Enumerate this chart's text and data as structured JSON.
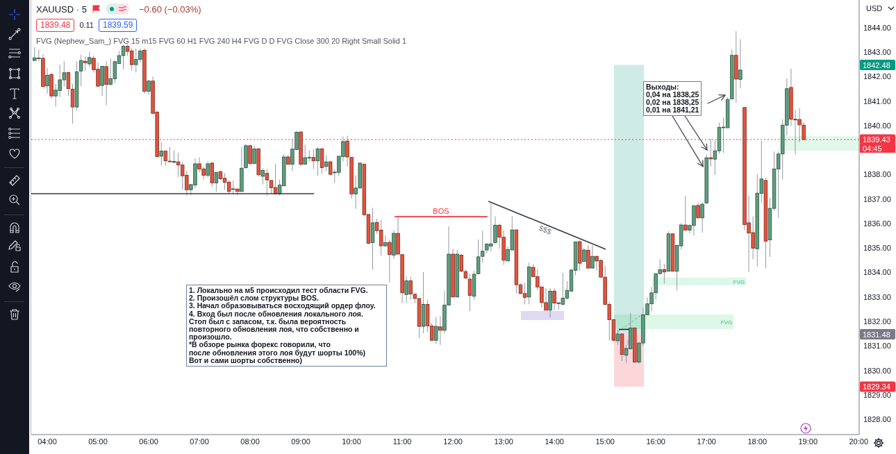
{
  "chart_data": {
    "type": "candlestick",
    "title": "XAUUSD · 5",
    "subtitle": "−0.60 (−0.03%)",
    "ylabel": "USD",
    "x": [
      3.75,
      3.8333,
      3.9167,
      4,
      4.0833,
      4.1667,
      4.25,
      4.3333,
      4.4167,
      4.5,
      4.5833,
      4.6667,
      4.75,
      4.8333,
      4.9167,
      5,
      5.0833,
      5.1667,
      5.25,
      5.3333,
      5.4167,
      5.5,
      5.5833,
      5.6667,
      5.75,
      5.8333,
      5.9167,
      6,
      6.0833,
      6.1667,
      6.25,
      6.3333,
      6.4167,
      6.5,
      6.5833,
      6.6667,
      6.75,
      6.8333,
      6.9167,
      7,
      7.0833,
      7.1667,
      7.25,
      7.3333,
      7.4167,
      7.5,
      7.5833,
      7.6667,
      7.75,
      7.8333,
      7.9167,
      8,
      8.0833,
      8.1667,
      8.25,
      8.3333,
      8.4167,
      8.5,
      8.5833,
      8.6667,
      8.75,
      8.8333,
      8.9167,
      9,
      9.0833,
      9.1667,
      9.25,
      9.3333,
      9.4167,
      9.5,
      9.5833,
      9.6667,
      9.75,
      9.8333,
      9.9167,
      10,
      10.0833,
      10.1667,
      10.25,
      10.3333,
      10.4167,
      10.5,
      10.5833,
      10.6667,
      10.75,
      10.8333,
      10.9167,
      11,
      11.0833,
      11.1667,
      11.25,
      11.3333,
      11.4167,
      11.5,
      11.5833,
      11.6667,
      11.75,
      11.8333,
      11.9167,
      12,
      12.0833,
      12.1667,
      12.25,
      12.3333,
      12.4167,
      12.5,
      12.5833,
      12.6667,
      12.75,
      12.8333,
      12.9167,
      13,
      13.0833,
      13.1667,
      13.25,
      13.3333,
      13.4167,
      13.5,
      13.5833,
      13.6667,
      13.75,
      13.8333,
      13.9167,
      14,
      14.0833,
      14.1667,
      14.25,
      14.3333,
      14.4167,
      14.5,
      14.5833,
      14.6667,
      14.75,
      14.8333,
      14.9167,
      15,
      15.0833,
      15.1667,
      15.25,
      15.3333,
      15.4167,
      15.5,
      15.5833,
      15.6667,
      15.75,
      15.8333,
      15.9167,
      16,
      16.0833,
      16.1667,
      16.25,
      16.3333,
      16.4167,
      16.5,
      16.5833,
      16.6667,
      16.75,
      16.8333,
      16.9167,
      17,
      17.0833,
      17.1667,
      17.25,
      17.3333,
      17.4167,
      17.5,
      17.5833,
      17.6667,
      17.75,
      17.8333,
      17.9167,
      18,
      18.0833,
      18.1667,
      18.25,
      18.3333,
      18.4167,
      18.5,
      18.5833,
      18.6667,
      18.75,
      18.8333,
      18.9167
    ],
    "ohlc": [
      [
        1842.66,
        1843.2,
        1842.63,
        1842.77
      ],
      [
        1842.75,
        1843.1,
        1842.63,
        1842.76
      ],
      [
        1842.75,
        1842.91,
        1841.59,
        1841.59
      ],
      [
        1841.62,
        1842.35,
        1841.3,
        1842.06
      ],
      [
        1842.09,
        1842.16,
        1841.1,
        1841.21
      ],
      [
        1841.21,
        1841.7,
        1840.77,
        1841.45
      ],
      [
        1841.43,
        1842.49,
        1841.17,
        1841.87
      ],
      [
        1841.87,
        1842.63,
        1841.59,
        1842.16
      ],
      [
        1842.17,
        1842.2,
        1841.21,
        1841.51
      ],
      [
        1841.49,
        1841.7,
        1840.08,
        1840.76
      ],
      [
        1840.76,
        1842.63,
        1840.6,
        1842.2
      ],
      [
        1842.23,
        1842.89,
        1841.61,
        1842.66
      ],
      [
        1842.63,
        1842.82,
        1842.23,
        1842.57
      ],
      [
        1842.52,
        1843.01,
        1842.39,
        1842.78
      ],
      [
        1842.75,
        1842.86,
        1842.16,
        1842.28
      ],
      [
        1842.3,
        1842.58,
        1841.59,
        1841.61
      ],
      [
        1841.64,
        1842.44,
        1841.21,
        1842.42
      ],
      [
        1842.41,
        1842.63,
        1840.83,
        1841.68
      ],
      [
        1841.68,
        1842.74,
        1841.64,
        1841.92
      ],
      [
        1841.91,
        1842.68,
        1841.73,
        1842.61
      ],
      [
        1842.53,
        1843.05,
        1842.52,
        1842.86
      ],
      [
        1842.86,
        1843.29,
        1842.3,
        1843.24
      ],
      [
        1843.24,
        1843.29,
        1842.86,
        1843.03
      ],
      [
        1843.05,
        1843.15,
        1842.25,
        1842.49
      ],
      [
        1842.49,
        1843.15,
        1842.17,
        1842.7
      ],
      [
        1842.7,
        1843.15,
        1842.58,
        1843.05
      ],
      [
        1843.08,
        1843.15,
        1841.3,
        1841.4
      ],
      [
        1841.4,
        1841.87,
        1841.26,
        1841.82
      ],
      [
        1841.82,
        1842.01,
        1840.5,
        1840.5
      ],
      [
        1840.55,
        1840.6,
        1838.7,
        1838.73
      ],
      [
        1838.75,
        1839.32,
        1838.37,
        1838.96
      ],
      [
        1838.96,
        1838.96,
        1838.37,
        1838.56
      ],
      [
        1838.54,
        1839.13,
        1838.5,
        1838.55
      ],
      [
        1838.54,
        1839,
        1838.47,
        1838.5
      ],
      [
        1838.52,
        1838.89,
        1837.9,
        1838.39
      ],
      [
        1838.39,
        1838.52,
        1837.38,
        1837.95
      ],
      [
        1837.97,
        1838.14,
        1837.14,
        1837.38
      ],
      [
        1837.38,
        1837.62,
        1837.16,
        1837.59
      ],
      [
        1837.57,
        1838.66,
        1837.43,
        1838.44
      ],
      [
        1838.44,
        1838.7,
        1838.09,
        1838.23
      ],
      [
        1838.23,
        1838.33,
        1837.79,
        1837.97
      ],
      [
        1837.97,
        1838.53,
        1837.87,
        1838.44
      ],
      [
        1838.47,
        1838.5,
        1837.49,
        1837.66
      ],
      [
        1837.66,
        1838.1,
        1837.3,
        1838.09
      ],
      [
        1838.12,
        1838.16,
        1837.78,
        1837.83
      ],
      [
        1837.85,
        1838.06,
        1837.38,
        1837.68
      ],
      [
        1837.69,
        1837.78,
        1837.21,
        1837.31
      ],
      [
        1837.41,
        1837.76,
        1837.21,
        1837.42
      ],
      [
        1837.41,
        1837.42,
        1837.16,
        1837.31
      ],
      [
        1837.31,
        1839.13,
        1837.3,
        1838.26
      ],
      [
        1838.28,
        1839.25,
        1838.23,
        1839.18
      ],
      [
        1839.18,
        1839.2,
        1838.37,
        1838.45
      ],
      [
        1838.45,
        1839.18,
        1838.42,
        1839.05
      ],
      [
        1839.05,
        1839.1,
        1837.93,
        1837.99
      ],
      [
        1837.93,
        1838.26,
        1837.59,
        1838.17
      ],
      [
        1838.05,
        1838.21,
        1837.14,
        1837.78
      ],
      [
        1837.76,
        1837.76,
        1837.21,
        1837.46
      ],
      [
        1837.47,
        1838.44,
        1837.21,
        1837.21
      ],
      [
        1837.21,
        1837.8,
        1837.14,
        1837.57
      ],
      [
        1837.54,
        1838.83,
        1837.52,
        1838.72
      ],
      [
        1838.72,
        1838.8,
        1838.4,
        1838.42
      ],
      [
        1838.42,
        1839.44,
        1838.14,
        1839.04
      ],
      [
        1839.02,
        1839.77,
        1838.99,
        1839.73
      ],
      [
        1839.74,
        1839.76,
        1838.34,
        1838.42
      ],
      [
        1838.42,
        1839.22,
        1838.4,
        1838.69
      ],
      [
        1838.69,
        1838.99,
        1838.53,
        1838.7
      ],
      [
        1838.7,
        1839.05,
        1838.23,
        1838.56
      ],
      [
        1838.56,
        1839.11,
        1837.95,
        1839.05
      ],
      [
        1839.05,
        1839.08,
        1838.02,
        1838.28
      ],
      [
        1838.33,
        1838.8,
        1838.14,
        1838.52
      ],
      [
        1838.52,
        1838.56,
        1837.97,
        1838.01
      ],
      [
        1838.09,
        1838.21,
        1837.66,
        1838.1
      ],
      [
        1838.09,
        1838.75,
        1837.93,
        1838.75
      ],
      [
        1838.73,
        1839.56,
        1838.54,
        1839.35
      ],
      [
        1839.37,
        1839.58,
        1838.33,
        1838.72
      ],
      [
        1838.7,
        1838.7,
        1837.02,
        1837.21
      ],
      [
        1837.21,
        1837.97,
        1836.6,
        1837.45
      ],
      [
        1837.45,
        1838.47,
        1837.43,
        1838.47
      ],
      [
        1838.42,
        1838.45,
        1836.3,
        1836.36
      ],
      [
        1836.37,
        1836.39,
        1835.16,
        1835.19
      ],
      [
        1835.22,
        1836.64,
        1834.12,
        1836.03
      ],
      [
        1836.04,
        1836.2,
        1835.58,
        1835.71
      ],
      [
        1835.73,
        1836.15,
        1834.69,
        1835.09
      ],
      [
        1835.09,
        1835.51,
        1835.03,
        1835.22
      ],
      [
        1835.23,
        1835.35,
        1833.6,
        1834.73
      ],
      [
        1834.71,
        1835.73,
        1834.56,
        1835.6
      ],
      [
        1835.6,
        1836.29,
        1834.75,
        1834.75
      ],
      [
        1834.73,
        1834.75,
        1832.75,
        1833.17
      ],
      [
        1833.1,
        1833.83,
        1832.75,
        1833.66
      ],
      [
        1833.66,
        1833.83,
        1832.89,
        1833.12
      ],
      [
        1833.11,
        1833.17,
        1832.75,
        1832.94
      ],
      [
        1832.94,
        1832.94,
        1831.33,
        1831.8
      ],
      [
        1831.8,
        1834.02,
        1831.52,
        1832.7
      ],
      [
        1832.7,
        1832.89,
        1831.56,
        1831.82
      ],
      [
        1831.82,
        1831.94,
        1831.21,
        1831.23
      ],
      [
        1831.23,
        1832.18,
        1831.09,
        1831.8
      ],
      [
        1831.78,
        1832.23,
        1831.04,
        1831.64
      ],
      [
        1831.64,
        1833.24,
        1831.52,
        1832.67
      ],
      [
        1832.67,
        1835.89,
        1832.65,
        1834.75
      ],
      [
        1834.75,
        1834.97,
        1832.98,
        1833
      ],
      [
        1833,
        1834.92,
        1832.98,
        1834.75
      ],
      [
        1834.71,
        1834.75,
        1834.02,
        1834.05
      ],
      [
        1834.04,
        1834.12,
        1833.74,
        1833.77
      ],
      [
        1833.73,
        1833.93,
        1832.42,
        1833.06
      ],
      [
        1833.03,
        1834.07,
        1832.89,
        1833.93
      ],
      [
        1833.95,
        1835.35,
        1833.93,
        1834.64
      ],
      [
        1834.66,
        1835.7,
        1834.4,
        1834.87
      ],
      [
        1834.92,
        1835.2,
        1834.78,
        1835.16
      ],
      [
        1835.08,
        1836.81,
        1834.85,
        1835.17
      ],
      [
        1835.22,
        1836.29,
        1835.16,
        1835.93
      ],
      [
        1835.93,
        1836,
        1834.97,
        1835.44
      ],
      [
        1835.44,
        1835.73,
        1834.31,
        1834.5
      ],
      [
        1834.47,
        1835.06,
        1834.47,
        1834.94
      ],
      [
        1834.92,
        1836.29,
        1834.92,
        1835.74
      ],
      [
        1835.74,
        1835.75,
        1833.14,
        1833.5
      ],
      [
        1833.5,
        1833.55,
        1833.12,
        1833.14
      ],
      [
        1833.14,
        1833.58,
        1832.7,
        1832.98
      ],
      [
        1833,
        1834.4,
        1832.7,
        1834.23
      ],
      [
        1834.21,
        1834.35,
        1833.83,
        1833.83
      ],
      [
        1833.83,
        1834.15,
        1833.27,
        1833.41
      ],
      [
        1833.41,
        1833.42,
        1832.56,
        1832.77
      ],
      [
        1832.77,
        1833.36,
        1832.46,
        1832.46
      ],
      [
        1832.46,
        1833.36,
        1832.16,
        1833.24
      ],
      [
        1833.24,
        1833.36,
        1832.46,
        1832.75
      ],
      [
        1832.76,
        1832.8,
        1832.46,
        1832.75
      ],
      [
        1832.7,
        1833.99,
        1832.7,
        1832.95
      ],
      [
        1832.95,
        1833.65,
        1832.89,
        1833.27
      ],
      [
        1833.24,
        1834.15,
        1833.22,
        1834.1
      ],
      [
        1834.09,
        1835.25,
        1833.88,
        1835.25
      ],
      [
        1835.26,
        1835.3,
        1834.07,
        1834.38
      ],
      [
        1834.45,
        1835,
        1834.45,
        1834.92
      ],
      [
        1834.91,
        1835.11,
        1834.18,
        1834.18
      ],
      [
        1834.18,
        1835.11,
        1834.18,
        1834.66
      ],
      [
        1834.66,
        1834.69,
        1834.07,
        1834.47
      ],
      [
        1834.49,
        1834.56,
        1833.81,
        1833.81
      ],
      [
        1833.81,
        1834.26,
        1832.65,
        1832.7
      ],
      [
        1832.7,
        1832.8,
        1831.23,
        1832.07
      ],
      [
        1832.07,
        1832.1,
        1831.19,
        1831.23
      ],
      [
        1831.21,
        1831.66,
        1831.04,
        1831.49
      ],
      [
        1831.49,
        1831.52,
        1830.38,
        1830.65
      ],
      [
        1830.62,
        1831.04,
        1830.31,
        1830.9
      ],
      [
        1830.88,
        1832.35,
        1830.86,
        1831.73
      ],
      [
        1831.73,
        1831.75,
        1830.29,
        1830.34
      ],
      [
        1830.34,
        1831.16,
        1830.27,
        1831.12
      ],
      [
        1831.12,
        1832.56,
        1831,
        1832.27
      ],
      [
        1832.27,
        1832.98,
        1832.27,
        1832.72
      ],
      [
        1832.72,
        1833.41,
        1832.42,
        1833.17
      ],
      [
        1833.17,
        1833.98,
        1832.89,
        1833.95
      ],
      [
        1833.95,
        1834.54,
        1833.93,
        1834.12
      ],
      [
        1834.12,
        1834.35,
        1833.55,
        1834.02
      ],
      [
        1834.05,
        1835.68,
        1834.05,
        1835.58
      ],
      [
        1835.58,
        1835.58,
        1834.05,
        1834.05
      ],
      [
        1834.05,
        1835.13,
        1833.27,
        1835.11
      ],
      [
        1835.09,
        1836.01,
        1834.94,
        1835.94
      ],
      [
        1835.94,
        1837.14,
        1835.73,
        1835.73
      ],
      [
        1835.73,
        1835.96,
        1835.6,
        1835.92
      ],
      [
        1835.92,
        1836.77,
        1835.51,
        1836.72
      ],
      [
        1836.74,
        1836.86,
        1836.23,
        1836.23
      ],
      [
        1836.23,
        1836.86,
        1835.63,
        1836.79
      ],
      [
        1836.84,
        1838.82,
        1836.81,
        1838.69
      ],
      [
        1838.69,
        1839.46,
        1838.33,
        1838.64
      ],
      [
        1838.63,
        1839.41,
        1837.99,
        1838.97
      ],
      [
        1838.97,
        1840.12,
        1838.85,
        1839.93
      ],
      [
        1839.92,
        1840.31,
        1838.89,
        1839.94
      ],
      [
        1839.91,
        1841.16,
        1839.91,
        1841.07
      ],
      [
        1841.09,
        1843.1,
        1841.07,
        1842.87
      ],
      [
        1842.87,
        1843.86,
        1840.93,
        1841.9
      ],
      [
        1841.89,
        1843.53,
        1841.52,
        1842.27
      ],
      [
        1840.74,
        1840.75,
        1835.73,
        1835.96
      ],
      [
        1836.03,
        1837.14,
        1834.02,
        1835.61
      ],
      [
        1835.63,
        1836.29,
        1834.54,
        1834.99
      ],
      [
        1834.97,
        1838.02,
        1834.24,
        1837.24
      ],
      [
        1837.23,
        1839.37,
        1836.83,
        1837.82
      ],
      [
        1837.76,
        1837.87,
        1834.17,
        1835.28
      ],
      [
        1835.33,
        1837.05,
        1834.64,
        1836.62
      ],
      [
        1836.62,
        1838.94,
        1836.53,
        1838.23
      ],
      [
        1838.23,
        1838.94,
        1836.25,
        1838.84
      ],
      [
        1838.84,
        1840.26,
        1837.81,
        1840.02
      ],
      [
        1840.02,
        1841.92,
        1839.6,
        1841.51
      ],
      [
        1841.56,
        1842.32,
        1839.98,
        1840.26
      ],
      [
        1840.26,
        1840.64,
        1838.82,
        1840.24
      ],
      [
        1840.25,
        1840.72,
        1839.32,
        1840.03
      ],
      [
        1840.02,
        1840.14,
        1839.41,
        1839.43
      ]
    ],
    "colors": [
      "#5d9f7e",
      "#5d9f7e",
      "#e5533e",
      "#5d9f7e",
      "#e5533e",
      "#5d9f7e",
      "#5d9f7e",
      "#5d9f7e",
      "#e5533e",
      "#e5533e",
      "#5d9f7e",
      "#5d9f7e",
      "#e5533e",
      "#5d9f7e",
      "#e5533e",
      "#e5533e",
      "#5d9f7e",
      "#e5533e",
      "#5d9f7e",
      "#5d9f7e",
      "#5d9f7e",
      "#5d9f7e",
      "#e5533e",
      "#e5533e",
      "#5d9f7e",
      "#5d9f7e",
      "#e5533e",
      "#5d9f7e",
      "#e5533e",
      "#e5533e",
      "#5d9f7e",
      "#e5533e",
      "#5d9f7e",
      "#e5533e",
      "#e5533e",
      "#e5533e",
      "#e5533e",
      "#5d9f7e",
      "#5d9f7e",
      "#e5533e",
      "#e5533e",
      "#5d9f7e",
      "#e5533e",
      "#5d9f7e",
      "#e5533e",
      "#e5533e",
      "#e5533e",
      "#5d9f7e",
      "#e5533e",
      "#5d9f7e",
      "#5d9f7e",
      "#e5533e",
      "#5d9f7e",
      "#e5533e",
      "#5d9f7e",
      "#e5533e",
      "#e5533e",
      "#e5533e",
      "#5d9f7e",
      "#5d9f7e",
      "#e5533e",
      "#5d9f7e",
      "#5d9f7e",
      "#e5533e",
      "#5d9f7e",
      "#5d9f7e",
      "#e5533e",
      "#5d9f7e",
      "#e5533e",
      "#5d9f7e",
      "#e5533e",
      "#5d9f7e",
      "#5d9f7e",
      "#5d9f7e",
      "#e5533e",
      "#e5533e",
      "#5d9f7e",
      "#5d9f7e",
      "#e5533e",
      "#e5533e",
      "#5d9f7e",
      "#e5533e",
      "#e5533e",
      "#5d9f7e",
      "#e5533e",
      "#5d9f7e",
      "#e5533e",
      "#e5533e",
      "#5d9f7e",
      "#e5533e",
      "#e5533e",
      "#e5533e",
      "#5d9f7e",
      "#e5533e",
      "#e5533e",
      "#5d9f7e",
      "#e5533e",
      "#5d9f7e",
      "#5d9f7e",
      "#e5533e",
      "#5d9f7e",
      "#e5533e",
      "#e5533e",
      "#e5533e",
      "#5d9f7e",
      "#5d9f7e",
      "#5d9f7e",
      "#5d9f7e",
      "#5d9f7e",
      "#5d9f7e",
      "#e5533e",
      "#e5533e",
      "#5d9f7e",
      "#5d9f7e",
      "#e5533e",
      "#e5533e",
      "#e5533e",
      "#5d9f7e",
      "#e5533e",
      "#e5533e",
      "#e5533e",
      "#e5533e",
      "#5d9f7e",
      "#e5533e",
      "#e5533e",
      "#5d9f7e",
      "#5d9f7e",
      "#5d9f7e",
      "#5d9f7e",
      "#e5533e",
      "#5d9f7e",
      "#e5533e",
      "#5d9f7e",
      "#e5533e",
      "#e5533e",
      "#e5533e",
      "#e5533e",
      "#e5533e",
      "#5d9f7e",
      "#e5533e",
      "#5d9f7e",
      "#5d9f7e",
      "#e5533e",
      "#5d9f7e",
      "#5d9f7e",
      "#5d9f7e",
      "#5d9f7e",
      "#5d9f7e",
      "#5d9f7e",
      "#e5533e",
      "#5d9f7e",
      "#e5533e",
      "#5d9f7e",
      "#5d9f7e",
      "#e5533e",
      "#5d9f7e",
      "#5d9f7e",
      "#e5533e",
      "#5d9f7e",
      "#5d9f7e",
      "#e5533e",
      "#5d9f7e",
      "#5d9f7e",
      "#5d9f7e",
      "#5d9f7e",
      "#5d9f7e",
      "#e5533e",
      "#5d9f7e",
      "#e5533e",
      "#e5533e",
      "#e5533e",
      "#5d9f7e",
      "#5d9f7e",
      "#e5533e",
      "#5d9f7e",
      "#5d9f7e",
      "#5d9f7e",
      "#5d9f7e",
      "#5d9f7e",
      "#e5533e",
      "#e5533e",
      "#e5533e",
      "#e5533e"
    ],
    "xlim": [
      3.685,
      20.01
    ],
    "xticks": [
      {
        "value": 4,
        "label": "04:00"
      },
      {
        "value": 5,
        "label": "05:00"
      },
      {
        "value": 6,
        "label": "06:00"
      },
      {
        "value": 7,
        "label": "07:00"
      },
      {
        "value": 8,
        "label": "08:00"
      },
      {
        "value": 9,
        "label": "09:00"
      },
      {
        "value": 10,
        "label": "10:00"
      },
      {
        "value": 11,
        "label": "11:00"
      },
      {
        "value": 12,
        "label": "12:00"
      },
      {
        "value": 13,
        "label": "13:00"
      },
      {
        "value": 14,
        "label": "14:00"
      },
      {
        "value": 15,
        "label": "15:00"
      },
      {
        "value": 16,
        "label": "16:00"
      },
      {
        "value": 17,
        "label": "17:00"
      },
      {
        "value": 18,
        "label": "18:00"
      },
      {
        "value": 19,
        "label": "19:00"
      },
      {
        "value": 20,
        "label": "20:00"
      }
    ],
    "ylim": [
      1827.38,
      1845.13
    ],
    "yticks": [
      {
        "value": 1828,
        "label": "1828.00"
      },
      {
        "value": 1829,
        "label": "1829.00"
      },
      {
        "value": 1830,
        "label": "1830.00"
      },
      {
        "value": 1831,
        "label": "1831.00"
      },
      {
        "value": 1832,
        "label": "1832.00"
      },
      {
        "value": 1833,
        "label": "1833.00"
      },
      {
        "value": 1834,
        "label": "1834.00"
      },
      {
        "value": 1835,
        "label": "1835.00"
      },
      {
        "value": 1836,
        "label": "1836.00"
      },
      {
        "value": 1837,
        "label": "1837.00"
      },
      {
        "value": 1838,
        "label": "1838.00"
      },
      {
        "value": 1840,
        "label": "1840.00"
      },
      {
        "value": 1841,
        "label": "1841.00"
      },
      {
        "value": 1842,
        "label": "1842.00"
      },
      {
        "value": 1843,
        "label": "1843.00"
      },
      {
        "value": 1844,
        "label": "1844.00"
      }
    ],
    "series": [
      {
        "type": "line",
        "x": [
          3.685,
          9.26
        ],
        "values": [
          1837.22,
          1837.22
        ],
        "color": "#363a45"
      },
      {
        "type": "line",
        "name": "BOS",
        "x": [
          10.85,
          12.68
        ],
        "values": [
          1836.28,
          1836.28
        ],
        "color": "#f23645"
      },
      {
        "type": "line",
        "name": "$$$",
        "x": [
          12.7,
          15.01
        ],
        "values": [
          1836.91,
          1834.95
        ],
        "color": "#363a45"
      }
    ],
    "ref_lines": [
      {
        "axis": "y",
        "value": 1839.43,
        "label": "1839.43",
        "color": "#f23645",
        "line_style": "dotted"
      }
    ],
    "annotations": [
      "1839.48",
      "0.11",
      "1839.59",
      "FVG (Nephew_Sam_) FVG 15 m15 FVG 60 H1 FVG 240 H4 FVG D D FVG Close 300 20 Right Small Solid 1",
      "04:45",
      "1842.48",
      "1831.48",
      "1829.34",
      "FVG",
      "FVG",
      {
        "text": "Выходы:\n0,04 на 1838,25\n0,02 на 1838,25\n0,01 на 1841,21",
        "x": 16.93,
        "y": 1838.33
      },
      "1. Локально на м5 происходил тест области FVG.\n2. Произошёл слом структуры BOS.\n3. Начал образовываться восходящий ордер флоу.\n4. Вход был после обновления локального лоя.\nСтоп был с запасом, т.к. была вероятность\nповторного обновления лоя, что собственно и\nпроизошло.\n*В обзоре рынка форекс говорили, что\nпосле обновления этого лоя будут шорты 100%)\nВот и сами шорты собственно)"
    ]
  }
}
